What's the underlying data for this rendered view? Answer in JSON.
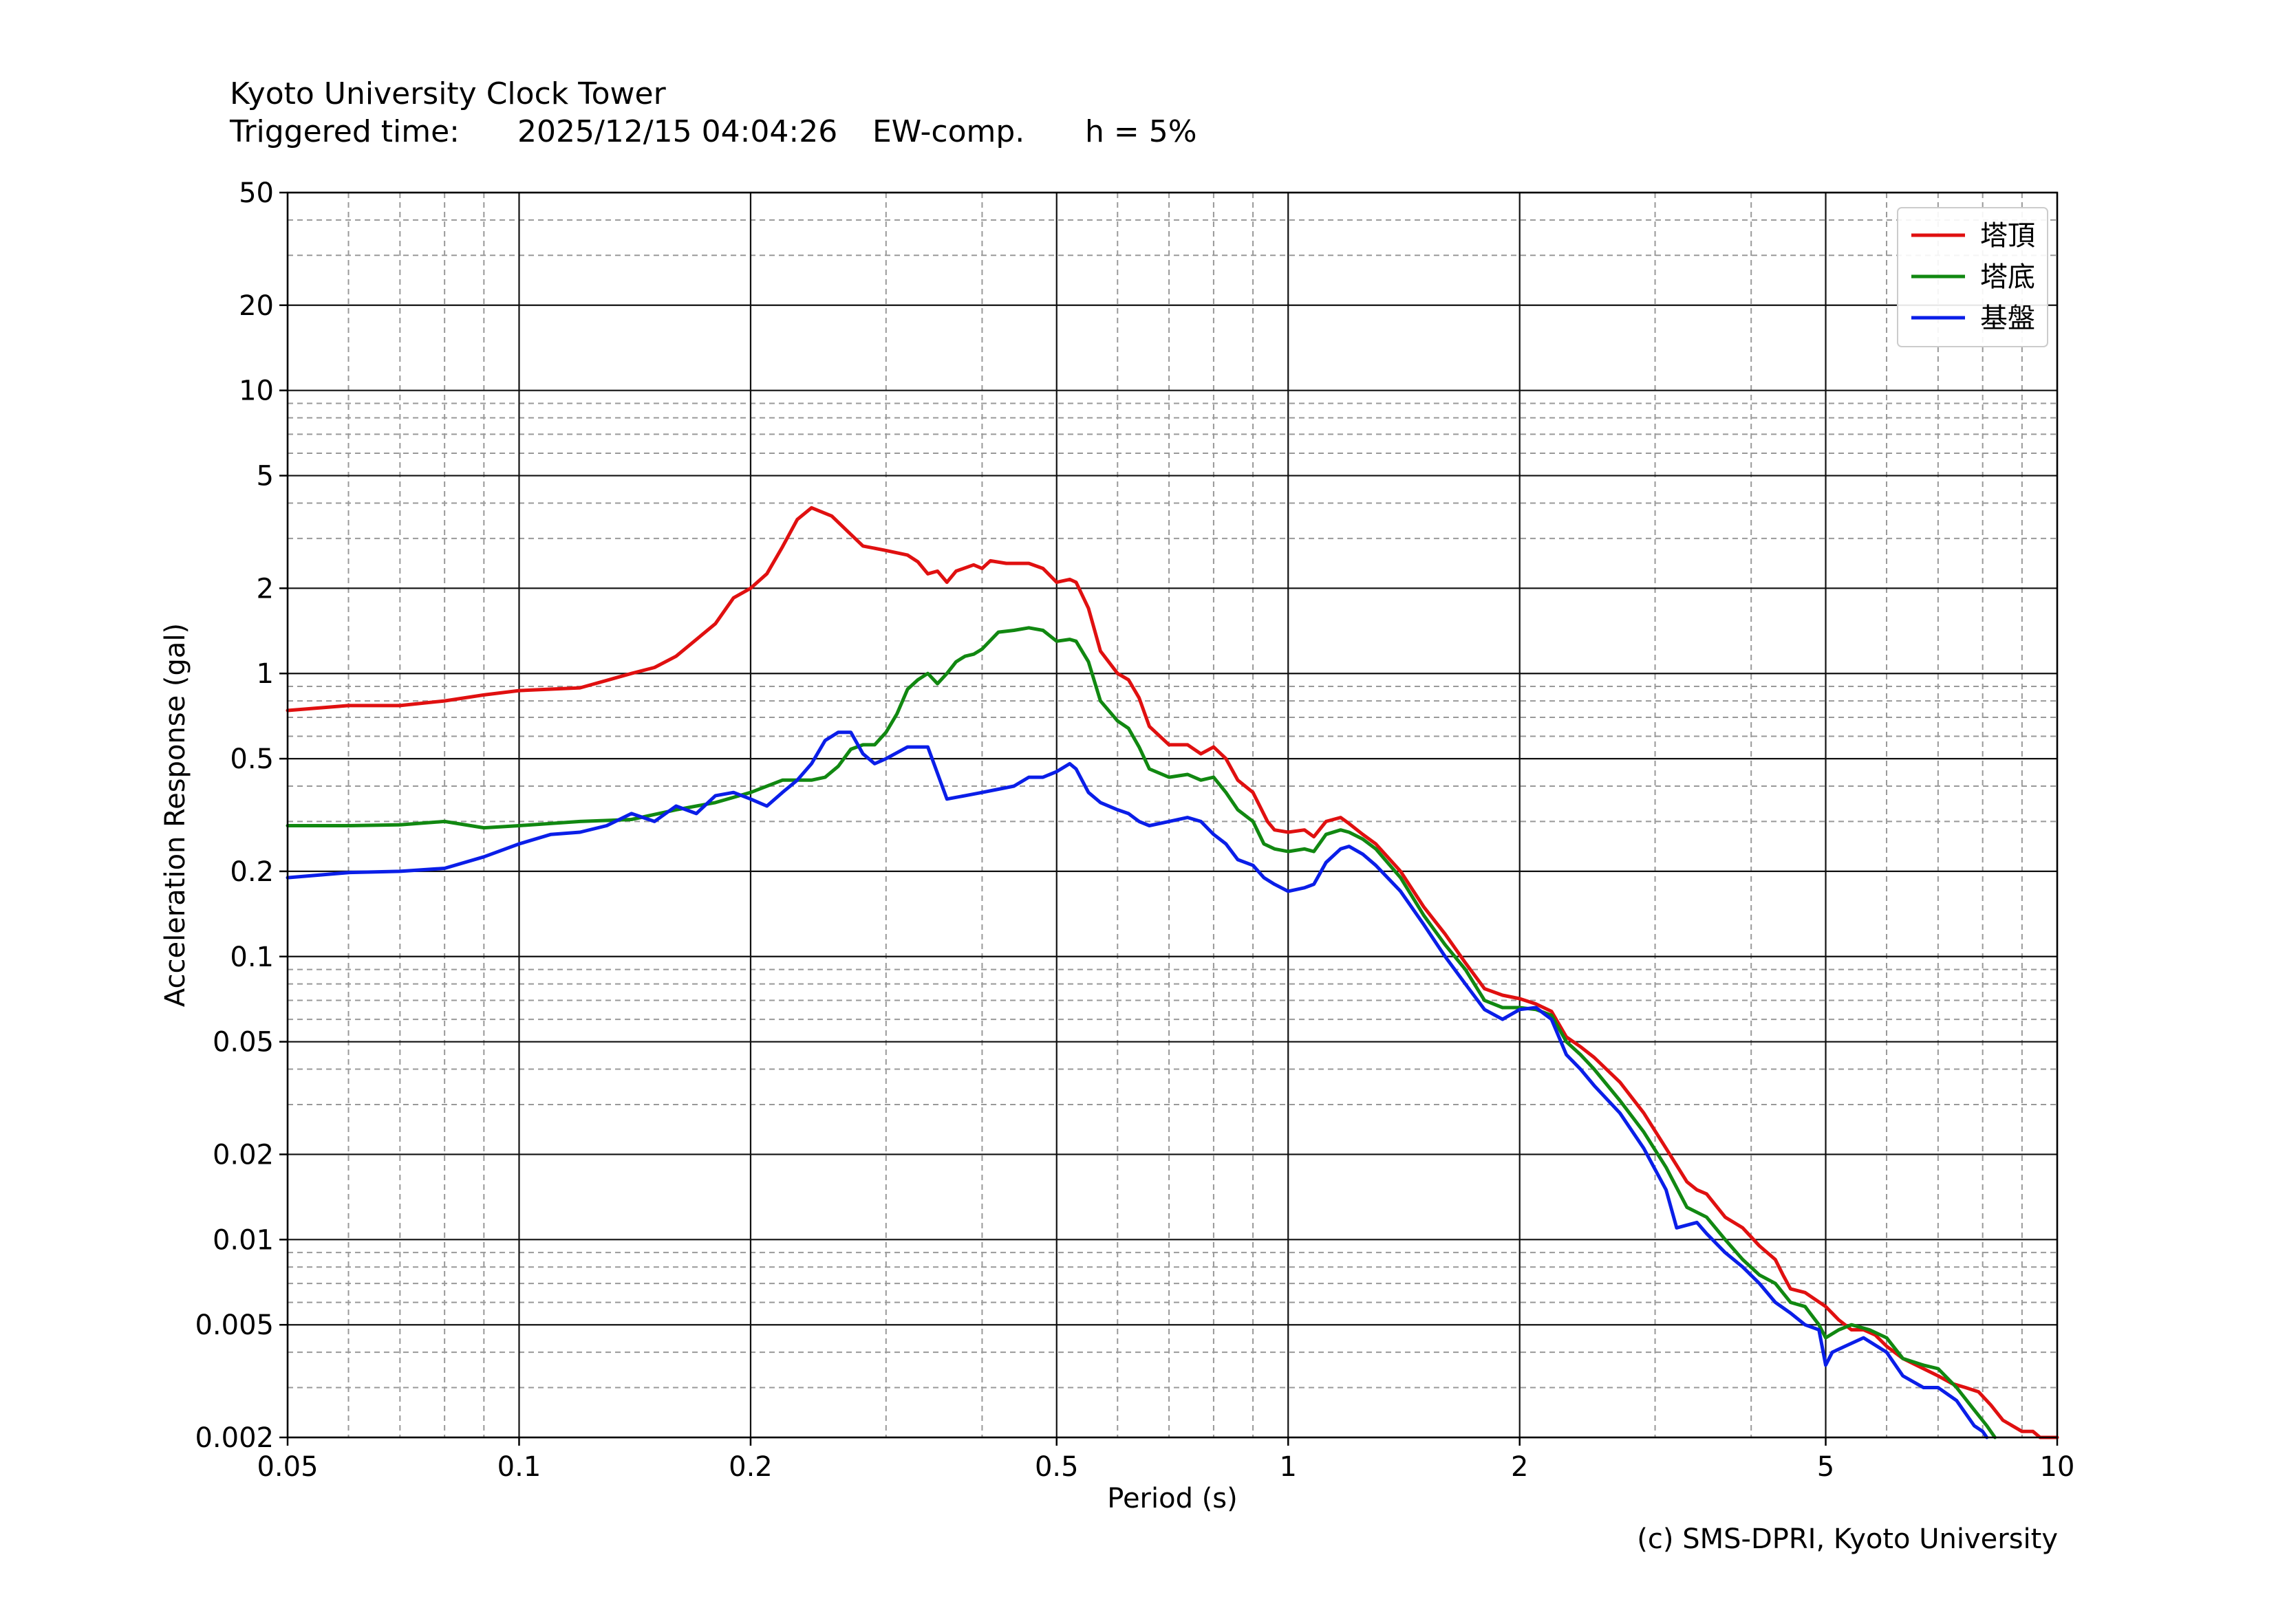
{
  "header": {
    "title": "Kyoto University Clock Tower",
    "trigger_label": "Triggered time:",
    "trigger_time": "2025/12/15 04:04:26",
    "component": "EW-comp.",
    "damping": "h = 5%"
  },
  "credit": "(c) SMS-DPRI, Kyoto University",
  "chart_data": {
    "type": "line",
    "xscale": "log",
    "yscale": "log",
    "xlabel": "Period (s)",
    "ylabel": "Acceleration Response (gal)",
    "xlim": [
      0.05,
      10
    ],
    "ylim": [
      0.002,
      50
    ],
    "grid": true,
    "legend_position": "top-right",
    "xticks": [
      {
        "v": 0.05,
        "label": "0.05"
      },
      {
        "v": 0.1,
        "label": "0.1"
      },
      {
        "v": 0.2,
        "label": "0.2"
      },
      {
        "v": 0.5,
        "label": "0.5"
      },
      {
        "v": 1,
        "label": "1"
      },
      {
        "v": 2,
        "label": "2"
      },
      {
        "v": 5,
        "label": "5"
      },
      {
        "v": 10,
        "label": "10"
      }
    ],
    "yticks": [
      {
        "v": 0.002,
        "label": "0.002"
      },
      {
        "v": 0.005,
        "label": "0.005"
      },
      {
        "v": 0.01,
        "label": "0.01"
      },
      {
        "v": 0.02,
        "label": "0.02"
      },
      {
        "v": 0.05,
        "label": "0.05"
      },
      {
        "v": 0.1,
        "label": "0.1"
      },
      {
        "v": 0.2,
        "label": "0.2"
      },
      {
        "v": 0.5,
        "label": "0.5"
      },
      {
        "v": 1,
        "label": "1"
      },
      {
        "v": 2,
        "label": "2"
      },
      {
        "v": 5,
        "label": "5"
      },
      {
        "v": 10,
        "label": "10"
      },
      {
        "v": 20,
        "label": "20"
      },
      {
        "v": 50,
        "label": "50"
      }
    ],
    "series": [
      {
        "name": "塔頂",
        "color": "#e01010",
        "points": [
          [
            0.05,
            0.74
          ],
          [
            0.06,
            0.77
          ],
          [
            0.07,
            0.77
          ],
          [
            0.08,
            0.8
          ],
          [
            0.09,
            0.84
          ],
          [
            0.1,
            0.87
          ],
          [
            0.12,
            0.89
          ],
          [
            0.14,
            1.0
          ],
          [
            0.15,
            1.05
          ],
          [
            0.16,
            1.15
          ],
          [
            0.18,
            1.5
          ],
          [
            0.19,
            1.85
          ],
          [
            0.2,
            2.0
          ],
          [
            0.21,
            2.25
          ],
          [
            0.22,
            2.8
          ],
          [
            0.23,
            3.5
          ],
          [
            0.24,
            3.85
          ],
          [
            0.255,
            3.6
          ],
          [
            0.27,
            3.1
          ],
          [
            0.28,
            2.82
          ],
          [
            0.3,
            2.72
          ],
          [
            0.32,
            2.62
          ],
          [
            0.33,
            2.48
          ],
          [
            0.34,
            2.25
          ],
          [
            0.35,
            2.3
          ],
          [
            0.36,
            2.1
          ],
          [
            0.37,
            2.3
          ],
          [
            0.39,
            2.42
          ],
          [
            0.4,
            2.35
          ],
          [
            0.41,
            2.5
          ],
          [
            0.43,
            2.45
          ],
          [
            0.46,
            2.45
          ],
          [
            0.48,
            2.35
          ],
          [
            0.5,
            2.1
          ],
          [
            0.52,
            2.15
          ],
          [
            0.53,
            2.1
          ],
          [
            0.55,
            1.7
          ],
          [
            0.57,
            1.2
          ],
          [
            0.6,
            1.0
          ],
          [
            0.62,
            0.95
          ],
          [
            0.64,
            0.82
          ],
          [
            0.66,
            0.65
          ],
          [
            0.7,
            0.56
          ],
          [
            0.74,
            0.56
          ],
          [
            0.77,
            0.52
          ],
          [
            0.8,
            0.55
          ],
          [
            0.83,
            0.5
          ],
          [
            0.86,
            0.42
          ],
          [
            0.9,
            0.38
          ],
          [
            0.94,
            0.3
          ],
          [
            0.96,
            0.28
          ],
          [
            1.0,
            0.275
          ],
          [
            1.05,
            0.28
          ],
          [
            1.08,
            0.265
          ],
          [
            1.12,
            0.3
          ],
          [
            1.17,
            0.31
          ],
          [
            1.2,
            0.295
          ],
          [
            1.25,
            0.27
          ],
          [
            1.3,
            0.25
          ],
          [
            1.4,
            0.2
          ],
          [
            1.5,
            0.15
          ],
          [
            1.6,
            0.12
          ],
          [
            1.7,
            0.095
          ],
          [
            1.8,
            0.077
          ],
          [
            1.9,
            0.073
          ],
          [
            2.0,
            0.071
          ],
          [
            2.1,
            0.068
          ],
          [
            2.2,
            0.064
          ],
          [
            2.3,
            0.052
          ],
          [
            2.4,
            0.048
          ],
          [
            2.5,
            0.044
          ],
          [
            2.7,
            0.036
          ],
          [
            2.9,
            0.028
          ],
          [
            3.1,
            0.021
          ],
          [
            3.3,
            0.016
          ],
          [
            3.4,
            0.015
          ],
          [
            3.5,
            0.0145
          ],
          [
            3.7,
            0.012
          ],
          [
            3.9,
            0.011
          ],
          [
            4.1,
            0.0095
          ],
          [
            4.3,
            0.0085
          ],
          [
            4.4,
            0.0075
          ],
          [
            4.5,
            0.0067
          ],
          [
            4.7,
            0.0065
          ],
          [
            5.0,
            0.0058
          ],
          [
            5.2,
            0.0052
          ],
          [
            5.4,
            0.0048
          ],
          [
            5.6,
            0.0048
          ],
          [
            5.8,
            0.0046
          ],
          [
            6.0,
            0.0042
          ],
          [
            6.3,
            0.0038
          ],
          [
            6.7,
            0.0035
          ],
          [
            7.0,
            0.0033
          ],
          [
            7.3,
            0.0031
          ],
          [
            7.6,
            0.003
          ],
          [
            7.9,
            0.0029
          ],
          [
            8.2,
            0.0026
          ],
          [
            8.5,
            0.0023
          ],
          [
            9.0,
            0.0021
          ],
          [
            9.3,
            0.0021
          ],
          [
            9.5,
            0.002
          ],
          [
            10.0,
            0.002
          ]
        ]
      },
      {
        "name": "塔底",
        "color": "#118811",
        "points": [
          [
            0.05,
            0.29
          ],
          [
            0.06,
            0.29
          ],
          [
            0.07,
            0.292
          ],
          [
            0.08,
            0.3
          ],
          [
            0.09,
            0.285
          ],
          [
            0.1,
            0.29
          ],
          [
            0.12,
            0.3
          ],
          [
            0.14,
            0.305
          ],
          [
            0.16,
            0.33
          ],
          [
            0.18,
            0.35
          ],
          [
            0.2,
            0.38
          ],
          [
            0.22,
            0.42
          ],
          [
            0.24,
            0.42
          ],
          [
            0.25,
            0.43
          ],
          [
            0.26,
            0.47
          ],
          [
            0.27,
            0.54
          ],
          [
            0.28,
            0.56
          ],
          [
            0.29,
            0.56
          ],
          [
            0.3,
            0.62
          ],
          [
            0.31,
            0.72
          ],
          [
            0.32,
            0.88
          ],
          [
            0.33,
            0.95
          ],
          [
            0.34,
            1.0
          ],
          [
            0.35,
            0.92
          ],
          [
            0.36,
            1.0
          ],
          [
            0.37,
            1.1
          ],
          [
            0.38,
            1.15
          ],
          [
            0.39,
            1.17
          ],
          [
            0.4,
            1.22
          ],
          [
            0.42,
            1.4
          ],
          [
            0.44,
            1.42
          ],
          [
            0.46,
            1.45
          ],
          [
            0.48,
            1.42
          ],
          [
            0.5,
            1.3
          ],
          [
            0.52,
            1.32
          ],
          [
            0.53,
            1.3
          ],
          [
            0.55,
            1.1
          ],
          [
            0.57,
            0.8
          ],
          [
            0.6,
            0.68
          ],
          [
            0.62,
            0.64
          ],
          [
            0.64,
            0.55
          ],
          [
            0.66,
            0.46
          ],
          [
            0.7,
            0.43
          ],
          [
            0.74,
            0.44
          ],
          [
            0.77,
            0.42
          ],
          [
            0.8,
            0.43
          ],
          [
            0.83,
            0.38
          ],
          [
            0.86,
            0.33
          ],
          [
            0.9,
            0.3
          ],
          [
            0.93,
            0.25
          ],
          [
            0.96,
            0.24
          ],
          [
            1.0,
            0.235
          ],
          [
            1.05,
            0.24
          ],
          [
            1.08,
            0.235
          ],
          [
            1.12,
            0.27
          ],
          [
            1.17,
            0.28
          ],
          [
            1.2,
            0.275
          ],
          [
            1.25,
            0.26
          ],
          [
            1.3,
            0.24
          ],
          [
            1.4,
            0.19
          ],
          [
            1.5,
            0.14
          ],
          [
            1.6,
            0.11
          ],
          [
            1.7,
            0.09
          ],
          [
            1.8,
            0.07
          ],
          [
            1.9,
            0.066
          ],
          [
            2.0,
            0.066
          ],
          [
            2.1,
            0.065
          ],
          [
            2.2,
            0.062
          ],
          [
            2.3,
            0.05
          ],
          [
            2.4,
            0.045
          ],
          [
            2.5,
            0.04
          ],
          [
            2.7,
            0.031
          ],
          [
            2.9,
            0.024
          ],
          [
            3.1,
            0.018
          ],
          [
            3.3,
            0.013
          ],
          [
            3.5,
            0.012
          ],
          [
            3.7,
            0.01
          ],
          [
            3.9,
            0.0085
          ],
          [
            4.1,
            0.0075
          ],
          [
            4.3,
            0.007
          ],
          [
            4.5,
            0.006
          ],
          [
            4.7,
            0.0058
          ],
          [
            4.9,
            0.005
          ],
          [
            5.0,
            0.0045
          ],
          [
            5.2,
            0.0048
          ],
          [
            5.4,
            0.005
          ],
          [
            5.7,
            0.0048
          ],
          [
            6.0,
            0.0045
          ],
          [
            6.3,
            0.0038
          ],
          [
            6.7,
            0.0036
          ],
          [
            7.0,
            0.0035
          ],
          [
            7.4,
            0.003
          ],
          [
            7.8,
            0.0025
          ],
          [
            8.1,
            0.0022
          ],
          [
            8.3,
            0.002
          ]
        ]
      },
      {
        "name": "基盤",
        "color": "#0a1ee8",
        "points": [
          [
            0.05,
            0.19
          ],
          [
            0.06,
            0.198
          ],
          [
            0.07,
            0.2
          ],
          [
            0.08,
            0.205
          ],
          [
            0.09,
            0.225
          ],
          [
            0.1,
            0.25
          ],
          [
            0.11,
            0.27
          ],
          [
            0.12,
            0.275
          ],
          [
            0.13,
            0.29
          ],
          [
            0.14,
            0.32
          ],
          [
            0.15,
            0.3
          ],
          [
            0.16,
            0.34
          ],
          [
            0.17,
            0.32
          ],
          [
            0.18,
            0.37
          ],
          [
            0.19,
            0.38
          ],
          [
            0.2,
            0.36
          ],
          [
            0.21,
            0.34
          ],
          [
            0.22,
            0.38
          ],
          [
            0.23,
            0.42
          ],
          [
            0.24,
            0.48
          ],
          [
            0.25,
            0.58
          ],
          [
            0.26,
            0.62
          ],
          [
            0.27,
            0.62
          ],
          [
            0.28,
            0.52
          ],
          [
            0.29,
            0.48
          ],
          [
            0.3,
            0.5
          ],
          [
            0.32,
            0.55
          ],
          [
            0.34,
            0.55
          ],
          [
            0.36,
            0.36
          ],
          [
            0.38,
            0.37
          ],
          [
            0.4,
            0.38
          ],
          [
            0.42,
            0.39
          ],
          [
            0.44,
            0.4
          ],
          [
            0.46,
            0.43
          ],
          [
            0.48,
            0.43
          ],
          [
            0.5,
            0.45
          ],
          [
            0.52,
            0.48
          ],
          [
            0.53,
            0.46
          ],
          [
            0.55,
            0.38
          ],
          [
            0.57,
            0.35
          ],
          [
            0.6,
            0.33
          ],
          [
            0.62,
            0.32
          ],
          [
            0.64,
            0.3
          ],
          [
            0.66,
            0.29
          ],
          [
            0.7,
            0.3
          ],
          [
            0.74,
            0.31
          ],
          [
            0.77,
            0.3
          ],
          [
            0.8,
            0.27
          ],
          [
            0.83,
            0.25
          ],
          [
            0.86,
            0.22
          ],
          [
            0.9,
            0.21
          ],
          [
            0.93,
            0.19
          ],
          [
            0.96,
            0.18
          ],
          [
            1.0,
            0.17
          ],
          [
            1.05,
            0.175
          ],
          [
            1.08,
            0.18
          ],
          [
            1.12,
            0.215
          ],
          [
            1.17,
            0.24
          ],
          [
            1.2,
            0.245
          ],
          [
            1.25,
            0.23
          ],
          [
            1.3,
            0.21
          ],
          [
            1.4,
            0.17
          ],
          [
            1.5,
            0.13
          ],
          [
            1.6,
            0.1
          ],
          [
            1.7,
            0.08
          ],
          [
            1.8,
            0.065
          ],
          [
            1.9,
            0.06
          ],
          [
            2.0,
            0.065
          ],
          [
            2.1,
            0.066
          ],
          [
            2.2,
            0.06
          ],
          [
            2.3,
            0.045
          ],
          [
            2.4,
            0.04
          ],
          [
            2.5,
            0.035
          ],
          [
            2.7,
            0.028
          ],
          [
            2.9,
            0.021
          ],
          [
            3.1,
            0.015
          ],
          [
            3.2,
            0.011
          ],
          [
            3.4,
            0.0115
          ],
          [
            3.5,
            0.0105
          ],
          [
            3.7,
            0.009
          ],
          [
            3.9,
            0.008
          ],
          [
            4.1,
            0.007
          ],
          [
            4.3,
            0.006
          ],
          [
            4.5,
            0.0055
          ],
          [
            4.7,
            0.005
          ],
          [
            4.9,
            0.0048
          ],
          [
            5.0,
            0.0036
          ],
          [
            5.1,
            0.004
          ],
          [
            5.3,
            0.0042
          ],
          [
            5.6,
            0.0045
          ],
          [
            6.0,
            0.004
          ],
          [
            6.3,
            0.0033
          ],
          [
            6.7,
            0.003
          ],
          [
            7.0,
            0.003
          ],
          [
            7.4,
            0.0027
          ],
          [
            7.8,
            0.0022
          ],
          [
            8.0,
            0.0021
          ],
          [
            8.1,
            0.002
          ]
        ]
      }
    ]
  }
}
